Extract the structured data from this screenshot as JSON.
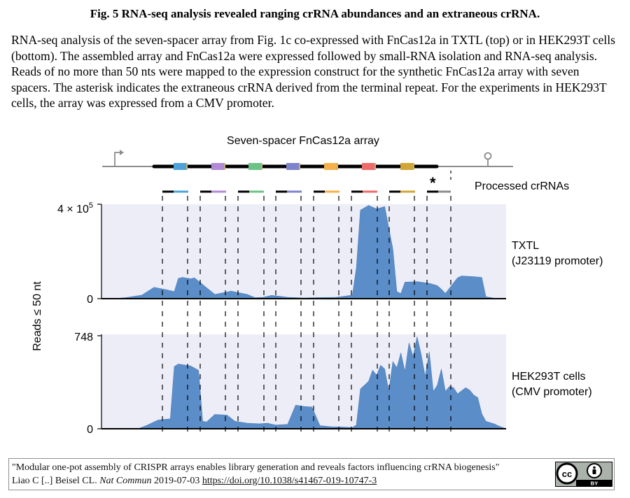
{
  "figure": {
    "title": "Fig. 5 RNA-seq analysis revealed ranging crRNA abundances and an extraneous crRNA.",
    "caption": "RNA-seq analysis of the seven-spacer array from Fig. 1c co-expressed with FnCas12a in TXTL (top) or in HEK293T cells (bottom). The assembled array and FnCas12a were expressed followed by small-RNA isolation and RNA-seq analysis. Reads of no more than 50 nts were mapped to the expression construct for the synthetic FnCas12a array with seven spacers. The asterisk indicates the extraneous crRNA derived from the terminal repeat. For the experiments in HEK293T cells, the array was expressed from a CMV promoter."
  },
  "diagram": {
    "array_title": "Seven-spacer FnCas12a array",
    "processed_label": "Processed crRNAs",
    "asterisk": "*",
    "spacer_colors": [
      "#4da3d9",
      "#b18ad8",
      "#6cc387",
      "#7d84cc",
      "#f6b04b",
      "#ef6b6b",
      "#d1a536"
    ],
    "extra_crrna_color": "#8c8c8c",
    "promoter_icon": "promoter-arrow-icon",
    "terminator_icon": "terminator-hairpin-icon"
  },
  "chart_data": [
    {
      "type": "area",
      "panel": "top",
      "label_line1": "TXTL",
      "label_line2": "(J23119 promoter)",
      "ylabel": "Reads ≤ 50 nt",
      "ytick_max_label": "4 × 10",
      "ytick_max_exponent": "5",
      "ytick_zero_label": "0",
      "ylim": [
        0,
        400000
      ],
      "x_range": [
        0,
        1
      ],
      "color": "#5b8ec9",
      "x": [
        0.0,
        0.03,
        0.06,
        0.1,
        0.13,
        0.16,
        0.18,
        0.19,
        0.2,
        0.22,
        0.23,
        0.25,
        0.28,
        0.31,
        0.32,
        0.34,
        0.36,
        0.38,
        0.39,
        0.4,
        0.42,
        0.44,
        0.46,
        0.48,
        0.5,
        0.53,
        0.56,
        0.58,
        0.6,
        0.62,
        0.63,
        0.64,
        0.66,
        0.68,
        0.7,
        0.72,
        0.73,
        0.74,
        0.75,
        0.78,
        0.81,
        0.83,
        0.84,
        0.85,
        0.88,
        0.89,
        0.9,
        0.92,
        0.94,
        0.95,
        0.97,
        1.0
      ],
      "values": [
        0,
        0,
        4000,
        15000,
        48000,
        38000,
        30000,
        86000,
        90000,
        84000,
        88000,
        60000,
        18000,
        28000,
        32000,
        25000,
        18000,
        4000,
        5000,
        6000,
        14000,
        10000,
        6000,
        4000,
        3000,
        4000,
        5000,
        6000,
        10000,
        15000,
        130000,
        375000,
        395000,
        380000,
        390000,
        210000,
        30000,
        22000,
        70000,
        72000,
        65000,
        55000,
        40000,
        22000,
        88000,
        96000,
        95000,
        93000,
        90000,
        8000,
        2000,
        0
      ]
    },
    {
      "type": "area",
      "panel": "bottom",
      "label_line1": "HEK293T cells",
      "label_line2": "(CMV promoter)",
      "ytick_max_label": "748",
      "ytick_zero_label": "0",
      "ylim": [
        0,
        748
      ],
      "x_range": [
        0,
        1
      ],
      "color": "#5b8ec9",
      "x": [
        0.0,
        0.09,
        0.11,
        0.14,
        0.17,
        0.18,
        0.19,
        0.22,
        0.24,
        0.25,
        0.26,
        0.28,
        0.31,
        0.33,
        0.36,
        0.39,
        0.41,
        0.43,
        0.46,
        0.48,
        0.5,
        0.52,
        0.54,
        0.57,
        0.59,
        0.61,
        0.62,
        0.63,
        0.64,
        0.66,
        0.67,
        0.68,
        0.69,
        0.7,
        0.71,
        0.72,
        0.73,
        0.74,
        0.75,
        0.76,
        0.77,
        0.78,
        0.79,
        0.8,
        0.81,
        0.82,
        0.83,
        0.84,
        0.85,
        0.86,
        0.87,
        0.88,
        0.9,
        0.91,
        0.92,
        0.93,
        0.94,
        0.95,
        0.96,
        0.97,
        0.98,
        1.0
      ],
      "values": [
        0,
        0,
        25,
        70,
        80,
        500,
        520,
        505,
        470,
        60,
        55,
        115,
        110,
        60,
        45,
        40,
        45,
        30,
        35,
        190,
        180,
        175,
        25,
        15,
        15,
        12,
        10,
        30,
        320,
        380,
        470,
        430,
        510,
        480,
        300,
        540,
        490,
        610,
        460,
        690,
        580,
        740,
        600,
        420,
        620,
        300,
        350,
        480,
        300,
        340,
        330,
        280,
        330,
        310,
        270,
        250,
        120,
        60,
        50,
        40,
        25,
        0
      ]
    }
  ],
  "citation": {
    "line1": "\"Modular one-pot assembly of CRISPR arrays enables library generation and reveals factors influencing crRNA biogenesis\"",
    "authors_date": "Liao C [..] Beisel  CL.",
    "journal": "Nat Commun",
    "date": "2019-07-03",
    "doi": "https://doi.org/10.1038/s41467-019-10747-3",
    "license_badge": "cc",
    "license_by": "BY"
  }
}
